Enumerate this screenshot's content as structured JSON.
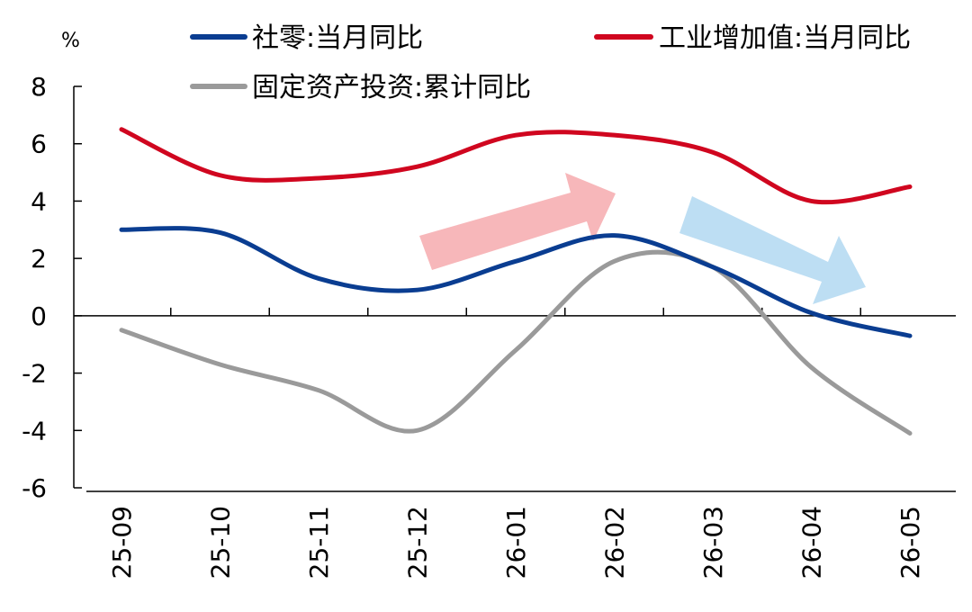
{
  "chart_data": {
    "type": "line",
    "title": "",
    "xlabel": "",
    "ylabel": "%",
    "ylim": [
      -6,
      8
    ],
    "yticks": [
      8,
      6,
      4,
      2,
      0,
      -2,
      -4,
      -6
    ],
    "categories": [
      "25-09",
      "25-10",
      "25-11",
      "25-12",
      "26-01",
      "26-02",
      "26-03",
      "26-04",
      "26-05"
    ],
    "series": [
      {
        "name": "社零:当月同比",
        "color": "#0a3d91",
        "values": [
          3.0,
          2.9,
          1.3,
          0.9,
          1.9,
          2.8,
          1.7,
          0.1,
          -0.7
        ]
      },
      {
        "name": "工业增加值:当月同比",
        "color": "#d0061f",
        "values": [
          6.5,
          4.9,
          4.8,
          5.2,
          6.3,
          6.3,
          5.7,
          4.0,
          4.5
        ]
      },
      {
        "name": "固定资产投资:累计同比",
        "color": "#9a9a9a",
        "values": [
          -0.5,
          -1.7,
          -2.6,
          -4.0,
          -1.2,
          1.9,
          1.7,
          -1.8,
          -4.1
        ]
      }
    ],
    "legend_position": "top",
    "grid": false,
    "annotations": [
      {
        "type": "arrow",
        "direction": "up",
        "color": "#f7b3b6"
      },
      {
        "type": "arrow",
        "direction": "down",
        "color": "#b9dcf2"
      }
    ]
  }
}
